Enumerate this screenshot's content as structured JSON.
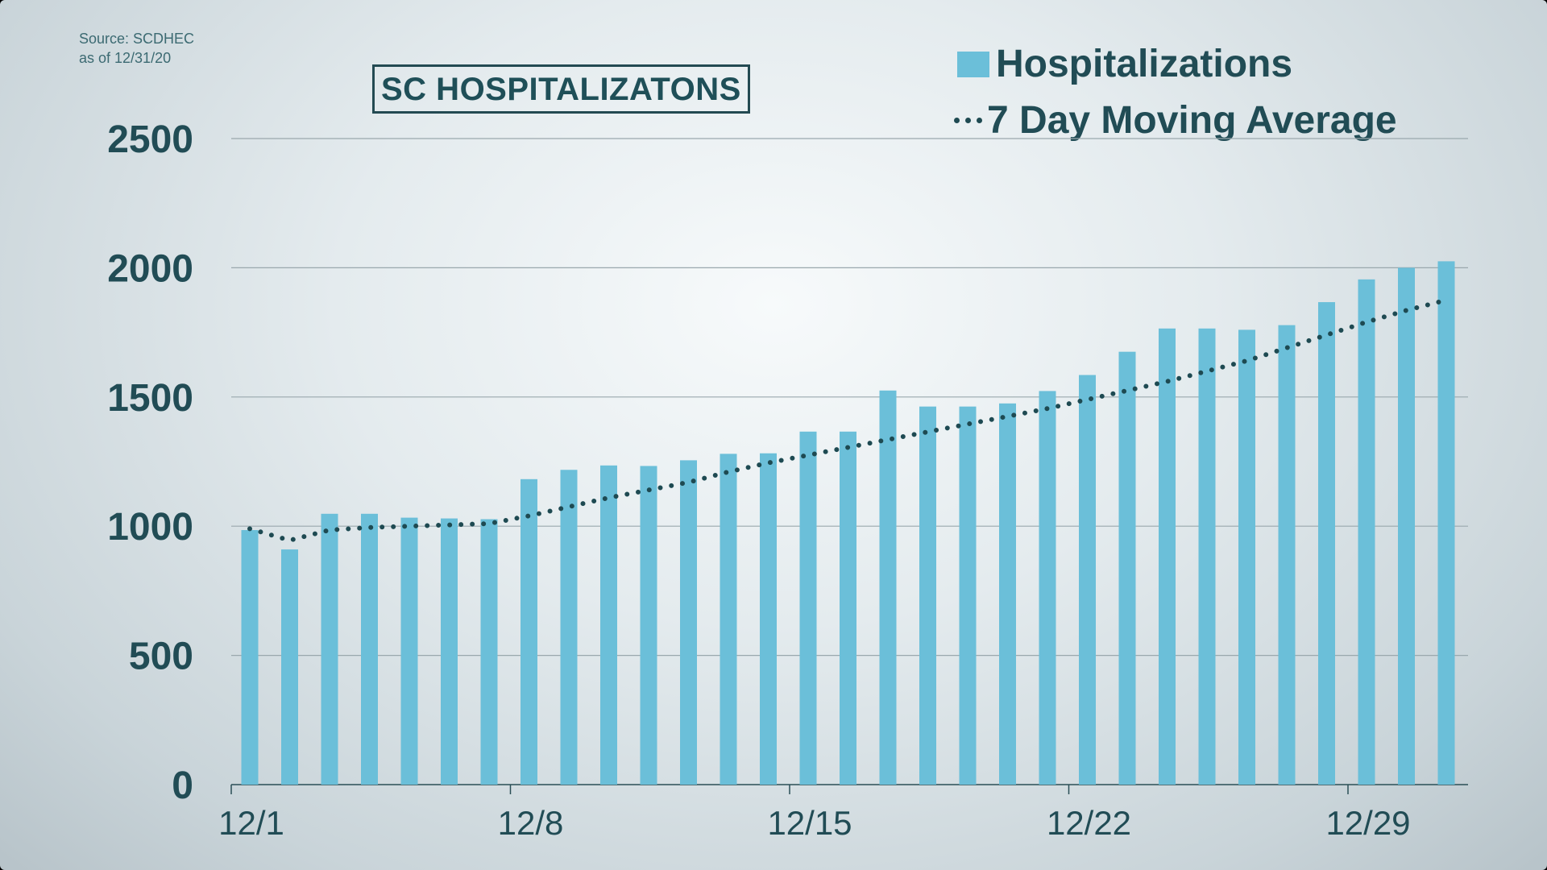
{
  "source": {
    "line1": "Source: SCDHEC",
    "line2": "as of 12/31/20"
  },
  "colors": {
    "bar": "#6bbfd9",
    "line": "#1e4a52",
    "text": "#214c55",
    "grid": "#9aa8ad"
  },
  "chart_data": {
    "type": "bar",
    "title": "SC HOSPITALIZATONS",
    "xlabel": "",
    "ylabel": "",
    "ylim": [
      0,
      2500
    ],
    "yticks": [
      0,
      500,
      1000,
      1500,
      2000,
      2500
    ],
    "xtick_labels": [
      {
        "index": 0,
        "label": "12/1"
      },
      {
        "index": 7,
        "label": "12/8"
      },
      {
        "index": 14,
        "label": "12/15"
      },
      {
        "index": 21,
        "label": "12/22"
      },
      {
        "index": 28,
        "label": "12/29"
      }
    ],
    "categories": [
      "12/1",
      "12/2",
      "12/3",
      "12/4",
      "12/5",
      "12/6",
      "12/7",
      "12/8",
      "12/9",
      "12/10",
      "12/11",
      "12/12",
      "12/13",
      "12/14",
      "12/15",
      "12/16",
      "12/17",
      "12/18",
      "12/19",
      "12/20",
      "12/21",
      "12/22",
      "12/23",
      "12/24",
      "12/25",
      "12/26",
      "12/27",
      "12/28",
      "12/29",
      "12/30",
      "12/31"
    ],
    "series": [
      {
        "name": "Hospitalizations",
        "type": "bar",
        "values": [
          985,
          910,
          1048,
          1048,
          1033,
          1030,
          1027,
          1182,
          1218,
          1235,
          1233,
          1255,
          1280,
          1282,
          1366,
          1366,
          1525,
          1463,
          1463,
          1475,
          1523,
          1585,
          1675,
          1765,
          1765,
          1760,
          1778,
          1867,
          1955,
          2000,
          2025
        ]
      },
      {
        "name": "7 Day Moving Average",
        "type": "line",
        "style": "dotted",
        "values": [
          990,
          945,
          985,
          995,
          1000,
          1005,
          1010,
          1040,
          1075,
          1110,
          1140,
          1170,
          1210,
          1245,
          1275,
          1305,
          1335,
          1365,
          1395,
          1425,
          1455,
          1490,
          1525,
          1560,
          1600,
          1640,
          1690,
          1740,
          1790,
          1835,
          1875
        ]
      }
    ],
    "legend": [
      {
        "label": "Hospitalizations",
        "marker": "bar"
      },
      {
        "label": "7 Day Moving Average",
        "marker": "dotted-line"
      }
    ],
    "legend_position": "top-right",
    "grid": true
  }
}
